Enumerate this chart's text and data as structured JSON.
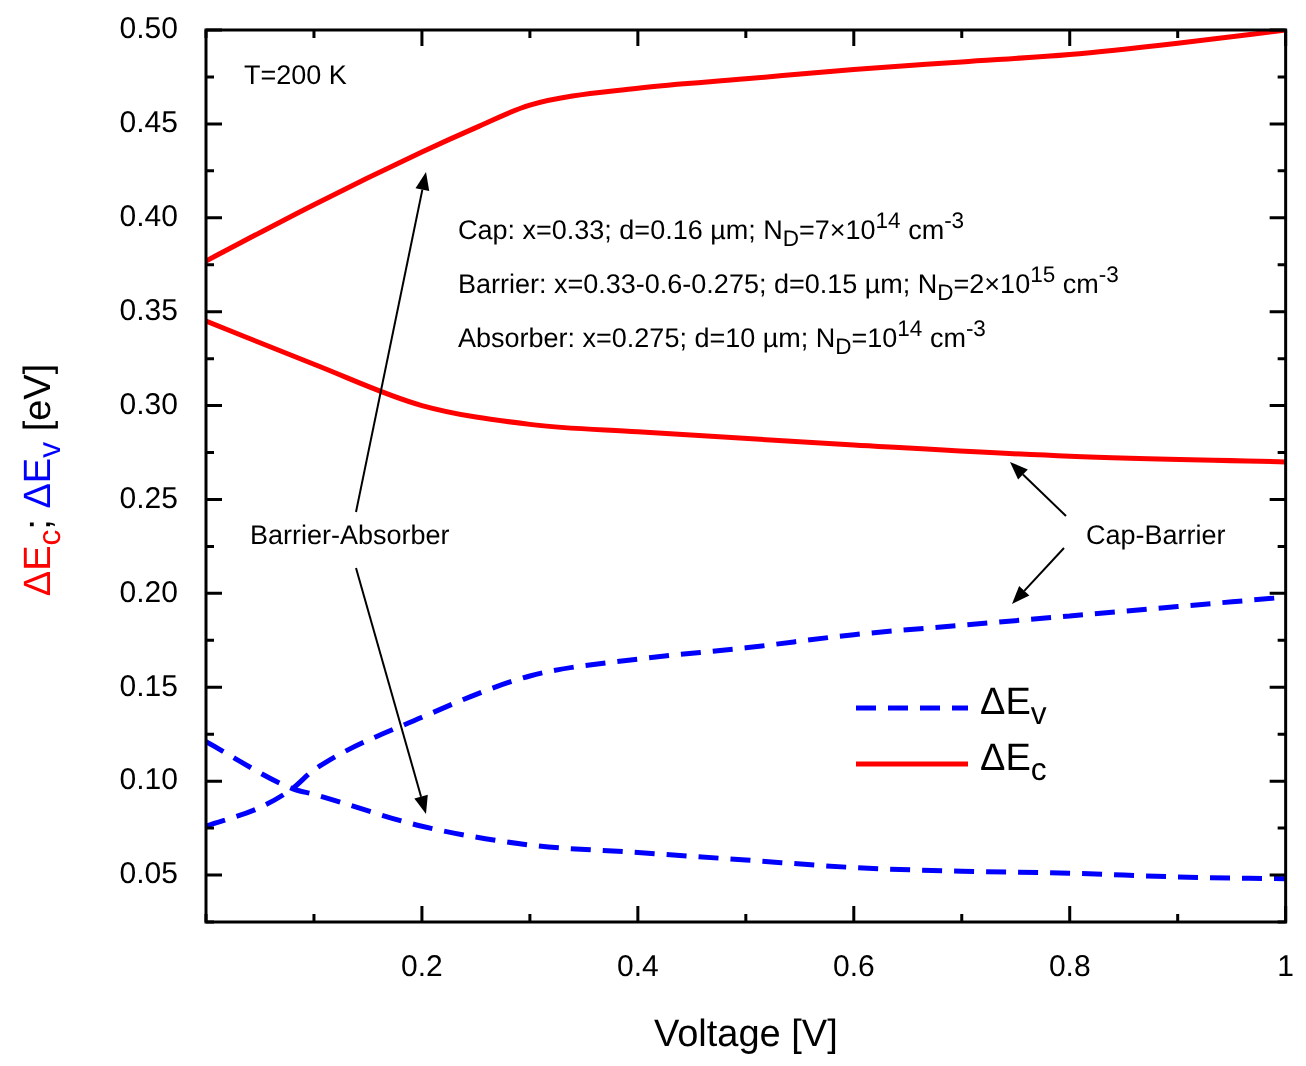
{
  "chart_data": {
    "type": "line",
    "xlabel": "Voltage [V]",
    "ylabel": "ΔE$_{c}$; ΔE$_{v}$ [eV]",
    "xlim": [
      0,
      1
    ],
    "xticks": [
      {
        "value": 0,
        "label": null
      },
      {
        "value": 0.1,
        "label": null
      },
      0.2,
      {
        "value": 0.3,
        "label": null
      },
      0.4,
      {
        "value": 0.5,
        "label": null
      },
      0.6,
      {
        "value": 0.7,
        "label": null
      },
      0.8,
      {
        "value": 0.9,
        "label": null
      },
      1
    ],
    "ylim": [
      0.025,
      0.5
    ],
    "yticks": [
      {
        "value": 0.025,
        "label": null
      },
      {
        "value": 0.05,
        "label": "0.05"
      },
      {
        "value": 0.075,
        "label": null
      },
      {
        "value": 0.1,
        "label": "0.10"
      },
      {
        "value": 0.125,
        "label": null
      },
      {
        "value": 0.15,
        "label": "0.15"
      },
      {
        "value": 0.175,
        "label": null
      },
      {
        "value": 0.2,
        "label": "0.20"
      },
      {
        "value": 0.225,
        "label": null
      },
      {
        "value": 0.25,
        "label": "0.25"
      },
      {
        "value": 0.275,
        "label": null
      },
      {
        "value": 0.3,
        "label": "0.30"
      },
      {
        "value": 0.325,
        "label": null
      },
      {
        "value": 0.35,
        "label": "0.35"
      },
      {
        "value": 0.375,
        "label": null
      },
      {
        "value": 0.4,
        "label": "0.40"
      },
      {
        "value": 0.425,
        "label": null
      },
      {
        "value": 0.45,
        "label": "0.45"
      },
      {
        "value": 0.475,
        "label": null
      },
      {
        "value": 0.5,
        "label": "0.50"
      }
    ],
    "grid": false,
    "legend": "bottom right",
    "marker": "none",
    "series": [
      {
        "name": "ΔE$_{v}$",
        "color": "#0000ff",
        "line_style": "dashed",
        "x": [
          0,
          0.05,
          0.08,
          0.1,
          0.2,
          0.3,
          0.4,
          0.5,
          0.6,
          0.7,
          0.8,
          0.9,
          1
        ],
        "values": [
          0.076,
          0.086,
          0.096,
          0.106,
          0.134,
          0.156,
          0.165,
          0.171,
          0.178,
          0.183,
          0.188,
          0.193,
          0.198
        ]
      },
      {
        "name": "ΔE$_{c}$",
        "color": "#ff0000",
        "line_style": "solid",
        "x": [
          0,
          0.1,
          0.2,
          0.25,
          0.3,
          0.4,
          0.5,
          0.6,
          0.7,
          0.8,
          0.9,
          1
        ],
        "values": [
          0.377,
          0.407,
          0.435,
          0.448,
          0.46,
          0.469,
          0.474,
          0.479,
          0.483,
          0.487,
          0.493,
          0.5
        ]
      },
      {
        "color": "#0000ff",
        "line_style": "dashed",
        "x": [
          0,
          0.08,
          0.1,
          0.2,
          0.3,
          0.4,
          0.5,
          0.6,
          0.7,
          0.8,
          0.9,
          1
        ],
        "values": [
          0.121,
          0.096,
          0.093,
          0.076,
          0.066,
          0.062,
          0.058,
          0.054,
          0.052,
          0.051,
          0.049,
          0.048
        ]
      },
      {
        "color": "#ff0000",
        "line_style": "solid",
        "x": [
          0,
          0.1,
          0.2,
          0.3,
          0.4,
          0.6,
          0.8,
          1
        ],
        "values": [
          0.345,
          0.322,
          0.3,
          0.29,
          0.286,
          0.279,
          0.273,
          0.27
        ]
      }
    ],
    "annotations": [
      "T=200 K",
      "Cap: x=0.33; d=0.16 µm; N$_{D}$=7×10$^{14}$ cm$^{-3}$",
      "Barrier: x=0.33-0.6-0.275; d=0.15 µm; N$_{D}$=2×10$^{15}$ cm$^{-3}$",
      "Absorber: x=0.275; d=10 µm; N$_{D}$=10$^{14}$ cm$^{-3}$",
      "Barrier-Absorber",
      "Cap-Barrier"
    ]
  }
}
